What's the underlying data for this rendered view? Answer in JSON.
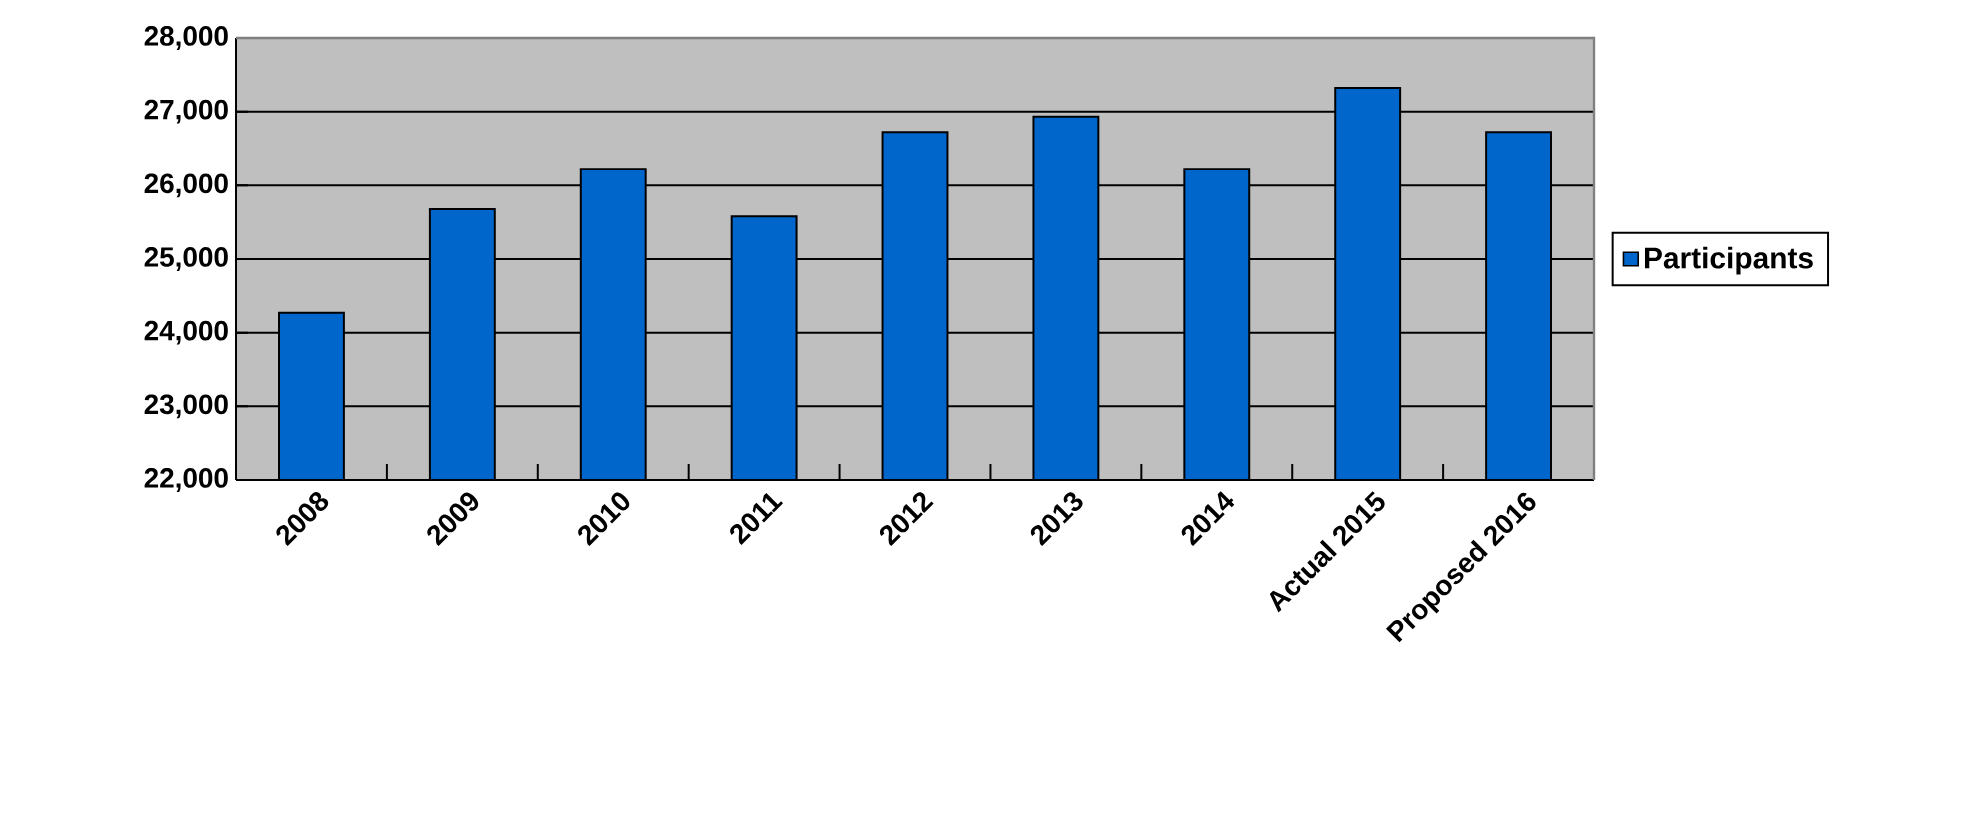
{
  "chart_data": {
    "type": "bar",
    "categories": [
      "2008",
      "2009",
      "2010",
      "2011",
      "2012",
      "2013",
      "2014",
      "Actual 2015",
      "Proposed 2016"
    ],
    "series": [
      {
        "name": "Participants",
        "color": "#0066cc",
        "values": [
          24270,
          25680,
          26220,
          25580,
          26720,
          26930,
          26220,
          27320,
          26720
        ]
      }
    ],
    "ylim": [
      22000,
      28000
    ],
    "yticks": [
      {
        "value": 22000,
        "label": "22,000"
      },
      {
        "value": 23000,
        "label": "23,000"
      },
      {
        "value": 24000,
        "label": "24,000"
      },
      {
        "value": 25000,
        "label": "25,000"
      },
      {
        "value": 26000,
        "label": "26,000"
      },
      {
        "value": 27000,
        "label": "27,000"
      },
      {
        "value": 28000,
        "label": "28,000"
      }
    ],
    "grid": "y",
    "legend": "right"
  }
}
